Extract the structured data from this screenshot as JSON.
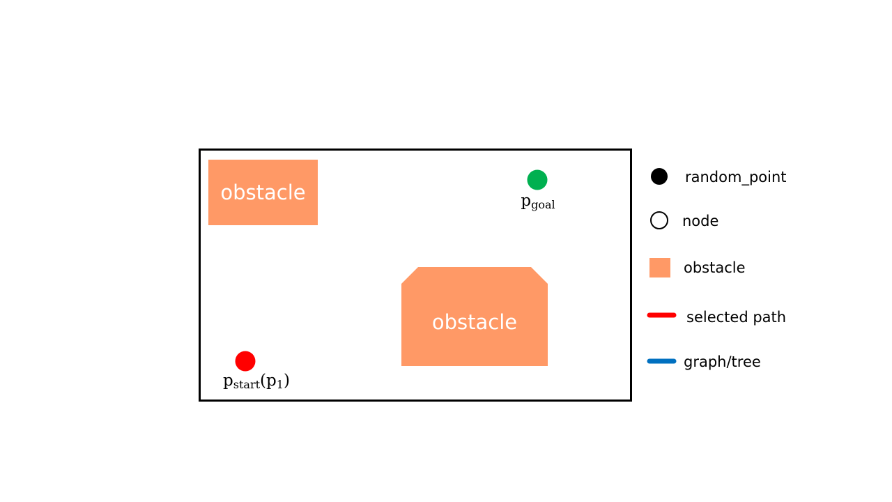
{
  "colors": {
    "background": "#ffffff",
    "border": "#000000",
    "obstacle": "#FF9966",
    "start": "#FF0000",
    "goal": "#00B050",
    "random_point": "#000000",
    "selected_path": "#FF0000",
    "graph_tree": "#0070C0"
  },
  "workspace": {
    "obstacles": [
      {
        "label": "obstacle",
        "shape": "rectangle"
      },
      {
        "label": "obstacle",
        "shape": "octagon-top-cut"
      }
    ],
    "start": {
      "base": "p",
      "sub": "start",
      "suffix_base": "p",
      "suffix_sub": "1"
    },
    "goal": {
      "base": "p",
      "sub": "goal"
    }
  },
  "legend": {
    "items": [
      {
        "label": "random_point",
        "icon": "filled-circle-icon"
      },
      {
        "label": "node",
        "icon": "hollow-circle-icon"
      },
      {
        "label": "obstacle",
        "icon": "filled-square-icon"
      },
      {
        "label": "selected path",
        "icon": "red-line-icon"
      },
      {
        "label": "graph/tree",
        "icon": "blue-line-icon"
      }
    ]
  }
}
